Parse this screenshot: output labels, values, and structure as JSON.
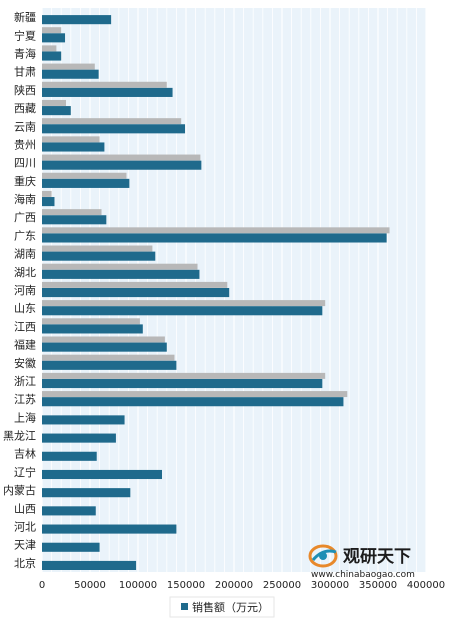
{
  "chart_data": {
    "type": "bar",
    "orientation": "horizontal",
    "categories": [
      "新疆",
      "宁夏",
      "青海",
      "甘肃",
      "陕西",
      "西藏",
      "云南",
      "贵州",
      "四川",
      "重庆",
      "海南",
      "广西",
      "广东",
      "湖南",
      "湖北",
      "河南",
      "山东",
      "江西",
      "福建",
      "安徽",
      "浙江",
      "江苏",
      "上海",
      "黑龙江",
      "吉林",
      "辽宁",
      "内蒙古",
      "山西",
      "河北",
      "天津",
      "北京"
    ],
    "series": [
      {
        "name": "",
        "role": "shadow",
        "color": "#b8b8b8",
        "values": [
          0,
          20000,
          15000,
          55000,
          130000,
          25000,
          145000,
          60000,
          165000,
          88000,
          10000,
          62000,
          362000,
          115000,
          162000,
          193000,
          295000,
          102000,
          128000,
          138000,
          295000,
          318000,
          0,
          0,
          0,
          0,
          0,
          0,
          0,
          0,
          0
        ]
      },
      {
        "name": "销售额（万元）",
        "color": "#1f6a8c",
        "values": [
          72000,
          24000,
          20000,
          59000,
          136000,
          30000,
          149000,
          65000,
          166000,
          91000,
          13000,
          67000,
          359000,
          118000,
          164000,
          195000,
          292000,
          105000,
          130000,
          140000,
          292000,
          314000,
          86000,
          77000,
          57000,
          125000,
          92000,
          56000,
          140000,
          60000,
          98000
        ]
      }
    ],
    "xlim": [
      0,
      400000
    ],
    "xticks": [
      "0",
      "50000",
      "100000",
      "150000",
      "200000",
      "250000",
      "300000",
      "350000",
      "400000"
    ],
    "grid": true,
    "legend_position": "bottom"
  },
  "watermark": {
    "brand_cn": "观研天下",
    "url": "www.chinabaogao.com"
  },
  "colors": {
    "plot_bg": "#eaf3fa",
    "grid": "#ffffff",
    "bar": "#1f6a8c",
    "shadow": "#b8b8b8",
    "logo_orange": "#e8892b",
    "logo_teal": "#1f8fb5"
  }
}
